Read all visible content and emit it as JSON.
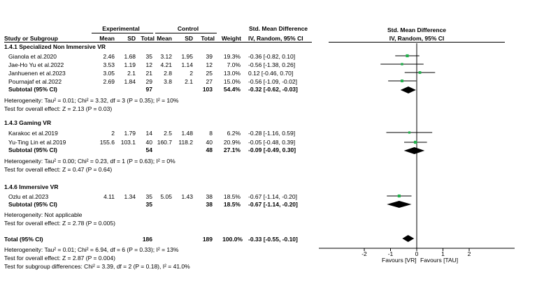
{
  "header": {
    "experimental": "Experimental",
    "control": "Control",
    "smd": "Std. Mean Difference",
    "smd_plot": "Std. Mean Difference",
    "cols": {
      "study": "Study or Subgroup",
      "e_mean": "Mean",
      "e_sd": "SD",
      "e_total": "Total",
      "c_mean": "Mean",
      "c_sd": "SD",
      "c_total": "Total",
      "weight": "Weight",
      "method": "IV, Random, 95% CI",
      "method_plot": "IV, Random, 95% CI"
    }
  },
  "subgroups": [
    {
      "title": "1.4.1 Specialized Non Immersive VR",
      "studies": [
        {
          "name": "Gianola et al.2020",
          "e_mean": "2.46",
          "e_sd": "1.68",
          "e_total": "35",
          "c_mean": "3.12",
          "c_sd": "1.95",
          "c_total": "39",
          "weight": "19.3%",
          "ci": "-0.36 [-0.82, 0.10]"
        },
        {
          "name": "Jae-Ho Yu et al.2022",
          "e_mean": "3.53",
          "e_sd": "1.19",
          "e_total": "12",
          "c_mean": "4.21",
          "c_sd": "1.14",
          "c_total": "12",
          "weight": "7.0%",
          "ci": "-0.56 [-1.38, 0.26]"
        },
        {
          "name": "Janhuenen et al.2023",
          "e_mean": "3.05",
          "e_sd": "2.1",
          "e_total": "21",
          "c_mean": "2.8",
          "c_sd": "2",
          "c_total": "25",
          "weight": "13.0%",
          "ci": "0.12 [-0.46, 0.70]"
        },
        {
          "name": "Pournajaf et al.2022",
          "e_mean": "2.69",
          "e_sd": "1.84",
          "e_total": "29",
          "c_mean": "3.8",
          "c_sd": "2.1",
          "c_total": "27",
          "weight": "15.0%",
          "ci": "-0.56 [-1.09, -0.02]"
        }
      ],
      "subtotal": {
        "label": "Subtotal (95% CI)",
        "e_total": "97",
        "c_total": "103",
        "weight": "54.4%",
        "ci": "-0.32 [-0.62, -0.03]"
      },
      "heterogeneity": "Heterogeneity: Tau² = 0.01; Chi² = 3.32, df = 3 (P = 0.35); I² = 10%",
      "overall": "Test for overall effect: Z = 2.13 (P = 0.03)"
    },
    {
      "title": "1.4.3 Gaming VR",
      "studies": [
        {
          "name": "Karakoc et al.2019",
          "e_mean": "2",
          "e_sd": "1.79",
          "e_total": "14",
          "c_mean": "2.5",
          "c_sd": "1.48",
          "c_total": "8",
          "weight": "6.2%",
          "ci": "-0.28 [-1.16, 0.59]"
        },
        {
          "name": "Yu-Ting Lin et al.2019",
          "e_mean": "155.6",
          "e_sd": "103.1",
          "e_total": "40",
          "c_mean": "160.7",
          "c_sd": "118.2",
          "c_total": "40",
          "weight": "20.9%",
          "ci": "-0.05 [-0.48, 0.39]"
        }
      ],
      "subtotal": {
        "label": "Subtotal (95% CI)",
        "e_total": "54",
        "c_total": "48",
        "weight": "27.1%",
        "ci": "-0.09 [-0.49, 0.30]"
      },
      "heterogeneity": "Heterogeneity: Tau² = 0.00; Chi² = 0.23, df = 1 (P = 0.63); I² = 0%",
      "overall": "Test for overall effect: Z = 0.47 (P = 0.64)"
    },
    {
      "title": "1.4.6 Immersive VR",
      "studies": [
        {
          "name": "Ozlu et al.2023",
          "e_mean": "4.11",
          "e_sd": "1.34",
          "e_total": "35",
          "c_mean": "5.05",
          "c_sd": "1.43",
          "c_total": "38",
          "weight": "18.5%",
          "ci": "-0.67 [-1.14, -0.20]"
        }
      ],
      "subtotal": {
        "label": "Subtotal (95% CI)",
        "e_total": "35",
        "c_total": "38",
        "weight": "18.5%",
        "ci": "-0.67 [-1.14, -0.20]"
      },
      "heterogeneity": "Heterogeneity: Not applicable",
      "overall": "Test for overall effect: Z = 2.78 (P = 0.005)"
    }
  ],
  "total": {
    "label": "Total (95% CI)",
    "e_total": "186",
    "c_total": "189",
    "weight": "100.0%",
    "ci": "-0.33 [-0.55, -0.10]"
  },
  "footer": {
    "heterogeneity": "Heterogeneity: Tau² = 0.01; Chi² = 6.94, df = 6 (P = 0.33); I² = 13%",
    "overall": "Test for overall effect: Z = 2.87 (P = 0.004)",
    "subgroup": "Test for subgroup differences: Chi² = 3.39, df = 2 (P = 0.18), I² = 41.0%"
  },
  "colors": {
    "point": "#22b14c",
    "line": "#000000"
  },
  "chart_data": {
    "type": "forest",
    "xlim": [
      -2,
      2
    ],
    "ticks": [
      -2,
      -1,
      0,
      1,
      2
    ],
    "tick_labels": [
      "-2",
      "-1",
      "0",
      "1",
      "2"
    ],
    "xlabel_left": "Favours [VR]",
    "xlabel_right": "Favours [TAU]",
    "studies": [
      {
        "name": "Gianola et al.2020",
        "est": -0.36,
        "lo": -0.82,
        "hi": 0.1,
        "weight": 19.3
      },
      {
        "name": "Jae-Ho Yu et al.2022",
        "est": -0.56,
        "lo": -1.38,
        "hi": 0.26,
        "weight": 7.0
      },
      {
        "name": "Janhuenen et al.2023",
        "est": 0.12,
        "lo": -0.46,
        "hi": 0.7,
        "weight": 13.0
      },
      {
        "name": "Pournajaf et al.2022",
        "est": -0.56,
        "lo": -1.09,
        "hi": -0.02,
        "weight": 15.0
      },
      {
        "name": "Karakoc et al.2019",
        "est": -0.28,
        "lo": -1.16,
        "hi": 0.59,
        "weight": 6.2
      },
      {
        "name": "Yu-Ting Lin et al.2019",
        "est": -0.05,
        "lo": -0.48,
        "hi": 0.39,
        "weight": 20.9
      },
      {
        "name": "Ozlu et al.2023",
        "est": -0.67,
        "lo": -1.14,
        "hi": -0.2,
        "weight": 18.5
      }
    ],
    "diamonds": [
      {
        "name": "1.4.1 Subtotal",
        "est": -0.32,
        "lo": -0.62,
        "hi": -0.03
      },
      {
        "name": "1.4.3 Subtotal",
        "est": -0.09,
        "lo": -0.49,
        "hi": 0.3
      },
      {
        "name": "1.4.6 Subtotal",
        "est": -0.67,
        "lo": -1.14,
        "hi": -0.2
      },
      {
        "name": "Total",
        "est": -0.33,
        "lo": -0.55,
        "hi": -0.1
      }
    ]
  }
}
